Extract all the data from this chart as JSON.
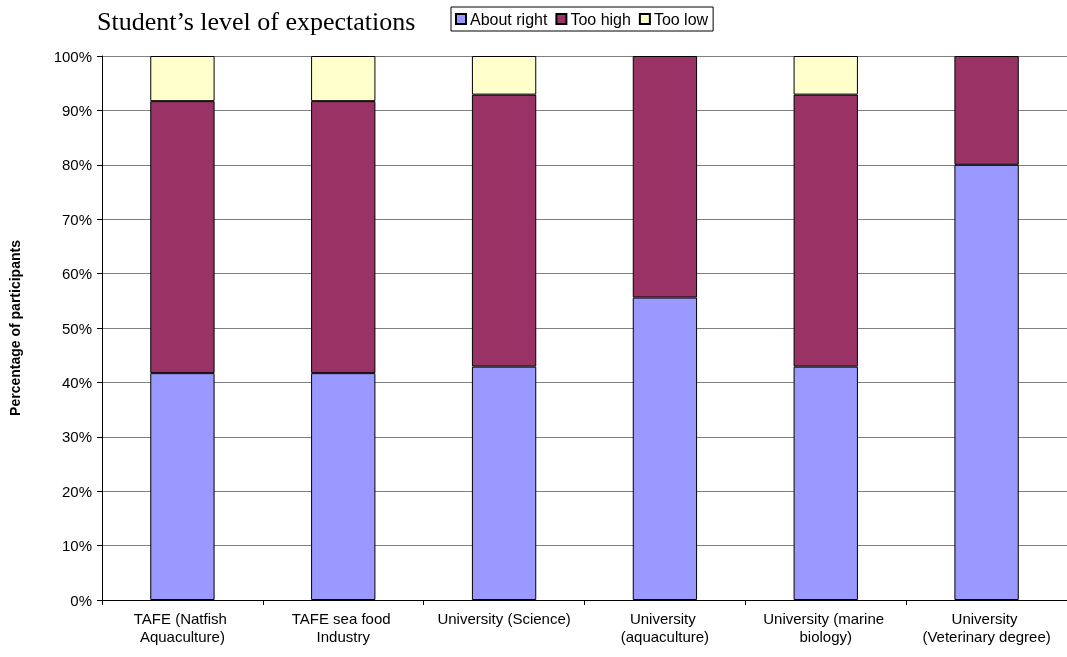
{
  "chart_data": {
    "type": "bar",
    "title": "Student’s level of expectations",
    "ylabel": "Percentage of participants",
    "categories": [
      "TAFE (Natfish Aquaculture)",
      "TAFE sea food Industry",
      "University (Science)",
      "University (aquaculture)",
      "University (marine biology)",
      "University (Veterinary degree)"
    ],
    "series": [
      {
        "name": "About right",
        "color": "#9999ff",
        "values": [
          41.7,
          41.7,
          42.9,
          55.6,
          42.9,
          80
        ]
      },
      {
        "name": "Too high",
        "color": "#993366",
        "values": [
          50,
          50,
          50,
          44.4,
          50,
          20
        ]
      },
      {
        "name": "Too low",
        "color": "#ffffcc",
        "values": [
          8.3,
          8.3,
          7.1,
          null,
          7.1,
          null
        ]
      }
    ],
    "stacked": true,
    "ylim": [
      0,
      100
    ],
    "yticks": [
      {
        "value": 0,
        "label": "0%"
      },
      {
        "value": 10,
        "label": "10%"
      },
      {
        "value": 20,
        "label": "20%"
      },
      {
        "value": 30,
        "label": "30%"
      },
      {
        "value": 40,
        "label": "40%"
      },
      {
        "value": 50,
        "label": "50%"
      },
      {
        "value": 60,
        "label": "60%"
      },
      {
        "value": 70,
        "label": "70%"
      },
      {
        "value": 80,
        "label": "80%"
      },
      {
        "value": 90,
        "label": "90%"
      },
      {
        "value": 100,
        "label": "100%"
      }
    ],
    "grid": "y",
    "legend": "top"
  }
}
